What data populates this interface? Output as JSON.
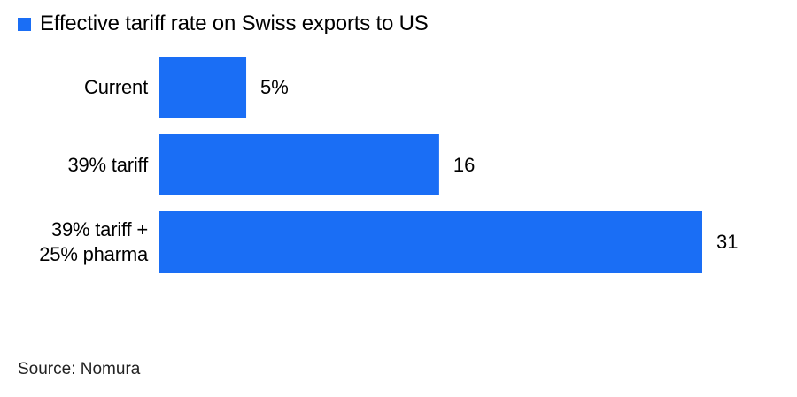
{
  "chart_data": {
    "type": "bar",
    "orientation": "horizontal",
    "categories": [
      "Current",
      "39% tariff",
      "39% tariff +\n25% pharma"
    ],
    "series": [
      {
        "name": "Effective tariff rate on Swiss exports to US",
        "values": [
          5,
          16,
          31
        ],
        "value_labels": [
          "5%",
          "16",
          "31"
        ]
      }
    ],
    "xlim": [
      0,
      31
    ],
    "grid": false,
    "legend_position": "top-left",
    "bar_color": "#1a6ef5"
  },
  "source": "Source: Nomura"
}
